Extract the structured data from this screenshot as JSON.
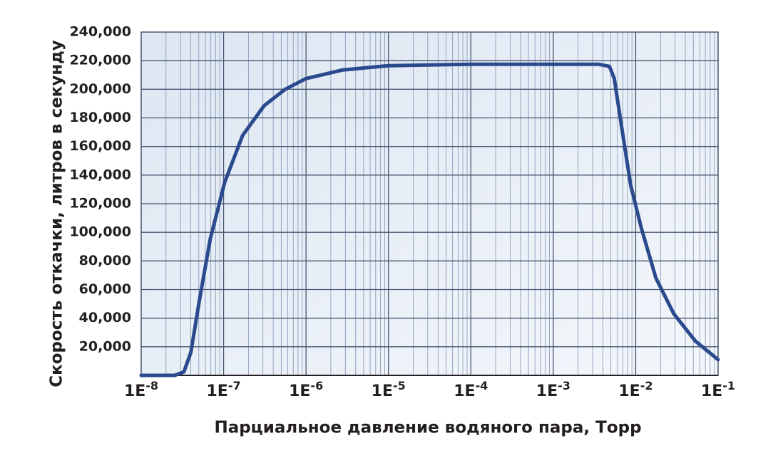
{
  "chart_data": {
    "type": "line",
    "x_label": "Парциальное давление водяного пара, Торр",
    "y_label": "Скорость откачки, литров в секунду",
    "x": [
      1e-08,
      2.55e-08,
      3.3e-08,
      4e-08,
      5.1e-08,
      6.9e-08,
      1.03e-07,
      1.7e-07,
      3.1e-07,
      5.6e-07,
      1e-06,
      2.8e-06,
      1e-05,
      0.0001,
      0.00355,
      0.0048,
      0.0055,
      0.0068,
      0.0087,
      0.0117,
      0.0176,
      0.029,
      0.053,
      0.1
    ],
    "values": [
      0,
      0,
      2500,
      16000,
      53000,
      95500,
      135000,
      167700,
      188500,
      200000,
      207500,
      213500,
      216500,
      217500,
      217500,
      216000,
      207500,
      172500,
      133000,
      103000,
      68000,
      43000,
      24000,
      11000
    ],
    "color": "#2b4a8e",
    "x_log": true,
    "xlim": [
      1e-08,
      0.1
    ],
    "xticks": [
      {
        "value": 1e-08,
        "label": "1E-8"
      },
      {
        "value": 1e-07,
        "label": "1E-7"
      },
      {
        "value": 1e-06,
        "label": "1E-6"
      },
      {
        "value": 1e-05,
        "label": "1E-5"
      },
      {
        "value": 0.0001,
        "label": "1E-4"
      },
      {
        "value": 0.001,
        "label": "1E-3"
      },
      {
        "value": 0.01,
        "label": "1E-2"
      },
      {
        "value": 0.1,
        "label": "1E-1"
      }
    ],
    "ylim": [
      0,
      240000
    ],
    "yticks": [
      {
        "value": 20000,
        "label": "20,000"
      },
      {
        "value": 40000,
        "label": "40,000"
      },
      {
        "value": 60000,
        "label": "60,000"
      },
      {
        "value": 80000,
        "label": "80,000"
      },
      {
        "value": 100000,
        "label": "100,000"
      },
      {
        "value": 120000,
        "label": "120,000"
      },
      {
        "value": 140000,
        "label": "140,000"
      },
      {
        "value": 160000,
        "label": "160,000"
      },
      {
        "value": 180000,
        "label": "180,000"
      },
      {
        "value": 200000,
        "label": "200,000"
      },
      {
        "value": 220000,
        "label": "220,000"
      },
      {
        "value": 240000,
        "label": "240,000"
      }
    ],
    "grid": true
  }
}
